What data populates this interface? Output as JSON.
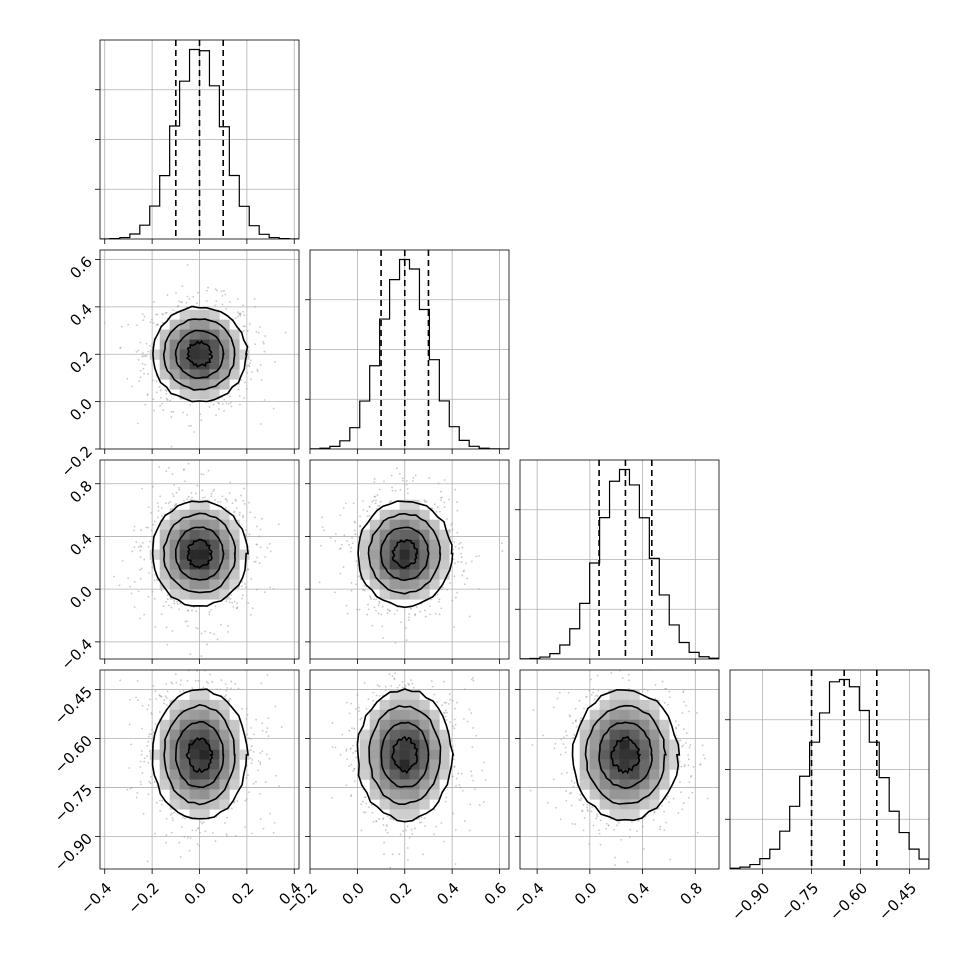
{
  "chart_data": {
    "type": "corner",
    "grid": true,
    "parameters": [
      {
        "name": "",
        "mean": 0.0,
        "sigma": 0.1,
        "quantiles": [
          -0.1,
          0.0,
          0.1
        ],
        "range": [
          -0.42,
          0.42
        ],
        "ticks": [
          -0.4,
          -0.2,
          0.0,
          0.2,
          0.4
        ],
        "tick_labels": [
          "−0.4",
          "−0.2",
          "0.0",
          "0.2",
          "0.4"
        ]
      },
      {
        "name": "",
        "mean": 0.2,
        "sigma": 0.1,
        "quantiles": [
          0.1,
          0.2,
          0.3
        ],
        "range": [
          -0.2,
          0.64
        ],
        "ticks": [
          -0.2,
          0.0,
          0.2,
          0.4,
          0.6
        ],
        "tick_labels": [
          "−0.2",
          "0.0",
          "0.2",
          "0.4",
          "0.6"
        ]
      },
      {
        "name": "",
        "mean": 0.27,
        "sigma": 0.2,
        "quantiles": [
          0.07,
          0.27,
          0.47
        ],
        "range": [
          -0.53,
          0.98
        ],
        "ticks": [
          -0.4,
          0.0,
          0.4,
          0.8
        ],
        "tick_labels": [
          "−0.4",
          "0.0",
          "0.4",
          "0.8"
        ]
      },
      {
        "name": "",
        "mean": -0.65,
        "sigma": 0.1,
        "quantiles": [
          -0.75,
          -0.65,
          -0.55
        ],
        "range": [
          -1.0,
          -0.39
        ],
        "ticks": [
          -0.9,
          -0.75,
          -0.6,
          -0.45
        ],
        "tick_labels": [
          "−0.90",
          "−0.75",
          "−0.60",
          "−0.45"
        ]
      }
    ],
    "histogram_bins": 20,
    "contour_levels_sigma": [
      0.5,
      1.0,
      1.5,
      2.0
    ]
  }
}
